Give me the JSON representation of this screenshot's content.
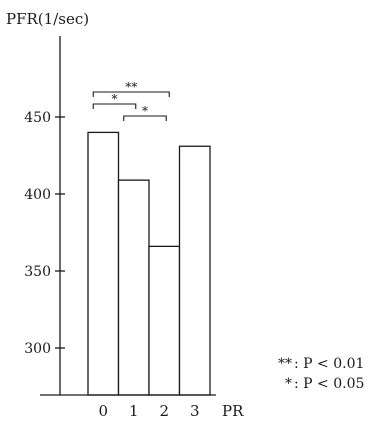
{
  "chart_data": {
    "type": "bar",
    "ylabel": "PFR(1/sec)",
    "xlabel": "PR",
    "categories": [
      "0",
      "1",
      "2",
      "3"
    ],
    "values": [
      440,
      409,
      366,
      431
    ],
    "ylim": [
      280,
      480
    ],
    "yticks": [
      "300",
      "350",
      "400",
      "450"
    ],
    "grid": false,
    "significance": [
      {
        "from": "0",
        "to": "2",
        "label": "**"
      },
      {
        "from": "0",
        "to": "1",
        "label": "*"
      },
      {
        "from": "1",
        "to": "2",
        "label": "*"
      }
    ],
    "legend": [
      {
        "symbol": "**",
        "text": ": P < 0.01"
      },
      {
        "symbol": "*",
        "text": ": P < 0.05"
      }
    ]
  }
}
